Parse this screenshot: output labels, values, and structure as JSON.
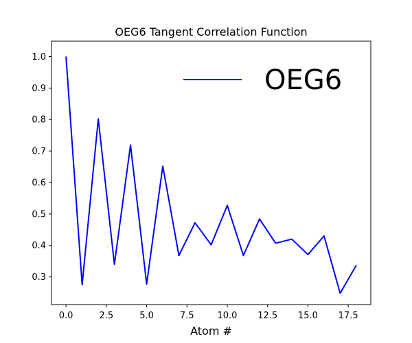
{
  "chart_data": {
    "type": "line",
    "title": "OEG6 Tangent Correlation Function",
    "xlabel": "Atom #",
    "ylabel": "",
    "xlim": [
      -0.9,
      18.9
    ],
    "ylim": [
      0.212,
      1.049
    ],
    "x_ticks": [
      0,
      2.5,
      5,
      7.5,
      10,
      12.5,
      15,
      17.5
    ],
    "x_tick_labels": [
      "0.0",
      "2.5",
      "5.0",
      "7.5",
      "10.0",
      "12.5",
      "15.0",
      "17.5"
    ],
    "y_ticks": [
      0.3,
      0.4,
      0.5,
      0.6,
      0.7,
      0.8,
      0.9,
      1.0
    ],
    "y_tick_labels": [
      "0.3",
      "0.4",
      "0.5",
      "0.6",
      "0.7",
      "0.8",
      "0.9",
      "1.0"
    ],
    "grid": false,
    "legend_position": "top-right",
    "series": [
      {
        "name": "OEG6",
        "color": "#0000ff",
        "x": [
          0,
          1,
          2,
          3,
          4,
          5,
          6,
          7,
          8,
          9,
          10,
          11,
          12,
          13,
          14,
          15,
          16,
          17,
          18
        ],
        "values": [
          1.0,
          0.275,
          0.802,
          0.34,
          0.719,
          0.277,
          0.652,
          0.368,
          0.472,
          0.402,
          0.527,
          0.368,
          0.484,
          0.407,
          0.42,
          0.371,
          0.43,
          0.248,
          0.337
        ]
      }
    ]
  }
}
